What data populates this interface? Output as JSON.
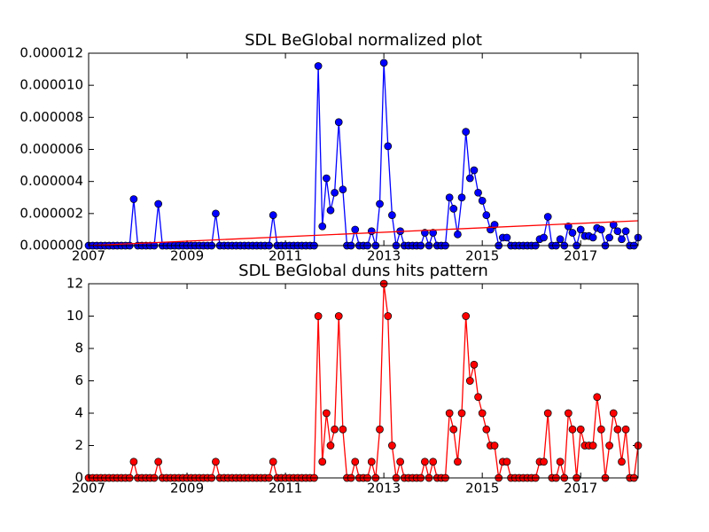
{
  "chart_data": [
    {
      "type": "line",
      "title": "SDL BeGlobal normalized plot",
      "x": [
        2007,
        2007.0833,
        2007.1667,
        2007.25,
        2007.3333,
        2007.4167,
        2007.5,
        2007.5833,
        2007.6667,
        2007.75,
        2007.8333,
        2007.9167,
        2008,
        2008.0833,
        2008.1667,
        2008.25,
        2008.3333,
        2008.4167,
        2008.5,
        2008.5833,
        2008.6667,
        2008.75,
        2008.8333,
        2008.9167,
        2009,
        2009.0833,
        2009.1667,
        2009.25,
        2009.3333,
        2009.4167,
        2009.5,
        2009.5833,
        2009.6667,
        2009.75,
        2009.8333,
        2009.9167,
        2010,
        2010.0833,
        2010.1667,
        2010.25,
        2010.3333,
        2010.4167,
        2010.5,
        2010.5833,
        2010.6667,
        2010.75,
        2010.8333,
        2010.9167,
        2011,
        2011.0833,
        2011.1667,
        2011.25,
        2011.3333,
        2011.4167,
        2011.5,
        2011.5833,
        2011.6667,
        2011.75,
        2011.8333,
        2011.9167,
        2012,
        2012.0833,
        2012.1667,
        2012.25,
        2012.3333,
        2012.4167,
        2012.5,
        2012.5833,
        2012.6667,
        2012.75,
        2012.8333,
        2012.9167,
        2013,
        2013.0833,
        2013.1667,
        2013.25,
        2013.3333,
        2013.4167,
        2013.5,
        2013.5833,
        2013.6667,
        2013.75,
        2013.8333,
        2013.9167,
        2014,
        2014.0833,
        2014.1667,
        2014.25,
        2014.3333,
        2014.4167,
        2014.5,
        2014.5833,
        2014.6667,
        2014.75,
        2014.8333,
        2014.9167,
        2015,
        2015.0833,
        2015.1667,
        2015.25,
        2015.3333,
        2015.4167,
        2015.5,
        2015.5833,
        2015.6667,
        2015.75,
        2015.8333,
        2015.9167,
        2016,
        2016.0833,
        2016.1667,
        2016.25,
        2016.3333,
        2016.4167,
        2016.5,
        2016.5833,
        2016.6667,
        2016.75,
        2016.8333,
        2016.9167,
        2017,
        2017.0833,
        2017.1667,
        2017.25,
        2017.3333,
        2017.4167,
        2017.5,
        2017.5833,
        2017.6667,
        2017.75,
        2017.8333,
        2017.9167,
        2018,
        2018.0833,
        2018.1667
      ],
      "series": [
        {
          "color": "#0000ff",
          "marker": "o",
          "values": [
            0,
            0,
            0,
            0,
            0,
            0,
            0,
            0,
            0,
            0,
            0,
            2.9e-06,
            0,
            0,
            0,
            0,
            0,
            2.6e-06,
            0,
            0,
            0,
            0,
            0,
            0,
            0,
            0,
            0,
            0,
            0,
            0,
            0,
            2e-06,
            0,
            0,
            0,
            0,
            0,
            0,
            0,
            0,
            0,
            0,
            0,
            0,
            0,
            1.9e-06,
            0,
            0,
            0,
            0,
            0,
            0,
            0,
            0,
            0,
            0,
            1.12e-05,
            1.2e-06,
            4.2e-06,
            2.2e-06,
            3.3e-06,
            7.7e-06,
            3.5e-06,
            0,
            0,
            1e-06,
            0,
            0,
            0,
            9e-07,
            0,
            2.6e-06,
            1.14e-05,
            6.2e-06,
            1.9e-06,
            0,
            9e-07,
            0,
            0,
            0,
            0,
            0,
            8e-07,
            0,
            8e-07,
            0,
            0,
            0,
            3e-06,
            2.3e-06,
            7e-07,
            3e-06,
            7.1e-06,
            4.2e-06,
            4.7e-06,
            3.3e-06,
            2.8e-06,
            1.9e-06,
            1e-06,
            1.3e-06,
            0,
            5e-07,
            5e-07,
            0,
            0,
            0,
            0,
            0,
            0,
            0,
            4e-07,
            5e-07,
            1.8e-06,
            0,
            0,
            4e-07,
            0,
            1.2e-06,
            8e-07,
            0,
            1e-06,
            6e-07,
            6e-07,
            5e-07,
            1.1e-06,
            1e-06,
            0,
            5e-07,
            1.3e-06,
            9e-07,
            4e-07,
            9e-07,
            0,
            0,
            5e-07
          ]
        },
        {
          "color": "#ff0000",
          "x": [
            2007,
            2018.1667
          ],
          "values": [
            0,
            1.55e-06
          ]
        }
      ],
      "xlim": [
        2007,
        2018.1667
      ],
      "xticks": [
        2007,
        2009,
        2011,
        2013,
        2015,
        2017
      ],
      "ylim": [
        0,
        1.2e-05
      ],
      "yticks": [
        {
          "value": 0,
          "label": "0.000000"
        },
        {
          "value": 2e-06,
          "label": "0.000002"
        },
        {
          "value": 4e-06,
          "label": "0.000004"
        },
        {
          "value": 6e-06,
          "label": "0.000006"
        },
        {
          "value": 8e-06,
          "label": "0.000008"
        },
        {
          "value": 1e-05,
          "label": "0.000010"
        },
        {
          "value": 1.2e-05,
          "label": "0.000012"
        }
      ]
    },
    {
      "type": "line",
      "title": "SDL BeGlobal duns hits pattern",
      "x": [
        2007,
        2007.0833,
        2007.1667,
        2007.25,
        2007.3333,
        2007.4167,
        2007.5,
        2007.5833,
        2007.6667,
        2007.75,
        2007.8333,
        2007.9167,
        2008,
        2008.0833,
        2008.1667,
        2008.25,
        2008.3333,
        2008.4167,
        2008.5,
        2008.5833,
        2008.6667,
        2008.75,
        2008.8333,
        2008.9167,
        2009,
        2009.0833,
        2009.1667,
        2009.25,
        2009.3333,
        2009.4167,
        2009.5,
        2009.5833,
        2009.6667,
        2009.75,
        2009.8333,
        2009.9167,
        2010,
        2010.0833,
        2010.1667,
        2010.25,
        2010.3333,
        2010.4167,
        2010.5,
        2010.5833,
        2010.6667,
        2010.75,
        2010.8333,
        2010.9167,
        2011,
        2011.0833,
        2011.1667,
        2011.25,
        2011.3333,
        2011.4167,
        2011.5,
        2011.5833,
        2011.6667,
        2011.75,
        2011.8333,
        2011.9167,
        2012,
        2012.0833,
        2012.1667,
        2012.25,
        2012.3333,
        2012.4167,
        2012.5,
        2012.5833,
        2012.6667,
        2012.75,
        2012.8333,
        2012.9167,
        2013,
        2013.0833,
        2013.1667,
        2013.25,
        2013.3333,
        2013.4167,
        2013.5,
        2013.5833,
        2013.6667,
        2013.75,
        2013.8333,
        2013.9167,
        2014,
        2014.0833,
        2014.1667,
        2014.25,
        2014.3333,
        2014.4167,
        2014.5,
        2014.5833,
        2014.6667,
        2014.75,
        2014.8333,
        2014.9167,
        2015,
        2015.0833,
        2015.1667,
        2015.25,
        2015.3333,
        2015.4167,
        2015.5,
        2015.5833,
        2015.6667,
        2015.75,
        2015.8333,
        2015.9167,
        2016,
        2016.0833,
        2016.1667,
        2016.25,
        2016.3333,
        2016.4167,
        2016.5,
        2016.5833,
        2016.6667,
        2016.75,
        2016.8333,
        2016.9167,
        2017,
        2017.0833,
        2017.1667,
        2017.25,
        2017.3333,
        2017.4167,
        2017.5,
        2017.5833,
        2017.6667,
        2017.75,
        2017.8333,
        2017.9167,
        2018,
        2018.0833,
        2018.1667
      ],
      "series": [
        {
          "color": "#ff0000",
          "marker": "o",
          "values": [
            0,
            0,
            0,
            0,
            0,
            0,
            0,
            0,
            0,
            0,
            0,
            1,
            0,
            0,
            0,
            0,
            0,
            1,
            0,
            0,
            0,
            0,
            0,
            0,
            0,
            0,
            0,
            0,
            0,
            0,
            0,
            1,
            0,
            0,
            0,
            0,
            0,
            0,
            0,
            0,
            0,
            0,
            0,
            0,
            0,
            1,
            0,
            0,
            0,
            0,
            0,
            0,
            0,
            0,
            0,
            0,
            10,
            1,
            4,
            2,
            3,
            10,
            3,
            0,
            0,
            1,
            0,
            0,
            0,
            1,
            0,
            3,
            12,
            10,
            2,
            0,
            1,
            0,
            0,
            0,
            0,
            0,
            1,
            0,
            1,
            0,
            0,
            0,
            4,
            3,
            1,
            4,
            10,
            6,
            7,
            5,
            4,
            3,
            2,
            2,
            0,
            1,
            1,
            0,
            0,
            0,
            0,
            0,
            0,
            0,
            1,
            1,
            4,
            0,
            0,
            1,
            0,
            4,
            3,
            0,
            3,
            2,
            2,
            2,
            5,
            3,
            0,
            2,
            4,
            3,
            1,
            3,
            0,
            0,
            2
          ]
        }
      ],
      "xlim": [
        2007,
        2018.1667
      ],
      "xticks": [
        2007,
        2009,
        2011,
        2013,
        2015,
        2017
      ],
      "ylim": [
        0,
        12
      ],
      "yticks": [
        0,
        2,
        4,
        6,
        8,
        10,
        12
      ]
    }
  ]
}
